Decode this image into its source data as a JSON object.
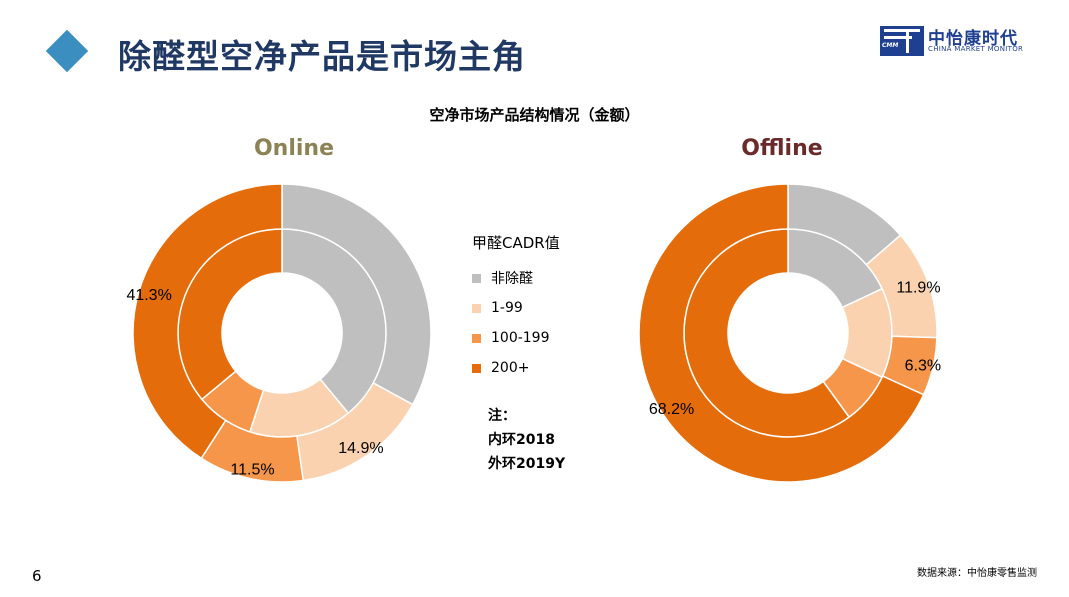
{
  "slide": {
    "title": "除醛型空净产品是市场主角",
    "page_number": "6",
    "source": "数据来源：中怡康零售监测"
  },
  "logo": {
    "name": "中怡康时代",
    "english": "CHINA MARKET MONITOR",
    "abbr": "CMM",
    "color": "#1f3f91"
  },
  "legend": {
    "title": "甲醛CADR值"
  },
  "note": {
    "line1": "注：",
    "line2": "内环2018",
    "line3": "外环2019Y"
  },
  "chart_data": {
    "type": "donut",
    "title": "空净市场产品结构情况（金额）",
    "categories": [
      "非除醛",
      "1-99",
      "100-199",
      "200+"
    ],
    "colors": [
      "#bfbfbf",
      "#fbd2b0",
      "#f5964a",
      "#e46c0a"
    ],
    "charts": [
      {
        "name": "Online",
        "title_color": "#8b8355",
        "outer_2019Y": [
          33.3,
          14.9,
          11.5,
          41.3
        ],
        "inner_2018": [
          39.0,
          16.0,
          9.0,
          36.0
        ],
        "labels": [
          "",
          "14.9%",
          "11.5%",
          "41.3%"
        ]
      },
      {
        "name": "Offline",
        "title_color": "#6b2a2a",
        "outer_2019Y": [
          13.6,
          11.9,
          6.3,
          68.2
        ],
        "inner_2018": [
          18.0,
          14.0,
          8.0,
          60.0
        ],
        "labels": [
          "",
          "11.9%",
          "6.3%",
          "68.2%"
        ]
      }
    ]
  }
}
